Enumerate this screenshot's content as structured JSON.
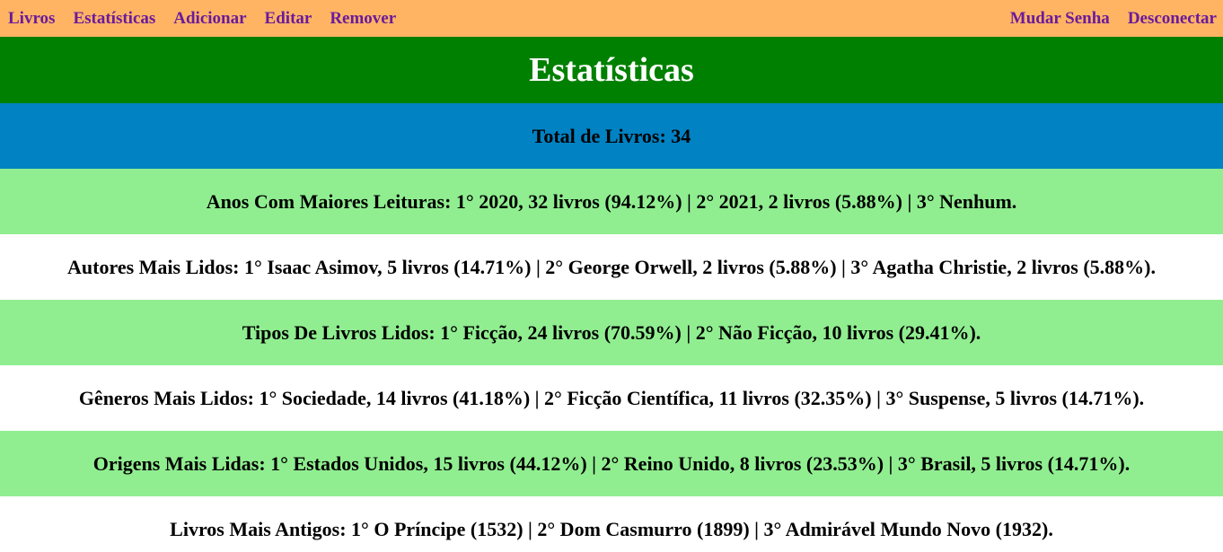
{
  "nav": {
    "left": [
      "Livros",
      "Estatísticas",
      "Adicionar",
      "Editar",
      "Remover"
    ],
    "right": [
      "Mudar Senha",
      "Desconectar"
    ]
  },
  "page": {
    "title": "Estatísticas",
    "total": "Total de Livros: 34"
  },
  "stats": [
    "Anos Com Maiores Leituras: 1° 2020, 32 livros (94.12%) | 2° 2021, 2 livros (5.88%) | 3° Nenhum.",
    "Autores Mais Lidos: 1° Isaac Asimov, 5 livros (14.71%) | 2° George Orwell, 2 livros (5.88%) | 3° Agatha Christie, 2 livros (5.88%).",
    "Tipos De Livros Lidos: 1° Ficção, 24 livros (70.59%) | 2° Não Ficção, 10 livros (29.41%).",
    "Gêneros Mais Lidos: 1° Sociedade, 14 livros (41.18%) | 2° Ficção Científica, 11 livros (32.35%) | 3° Suspense, 5 livros (14.71%).",
    "Origens Mais Lidas: 1° Estados Unidos, 15 livros (44.12%) | 2° Reino Unido, 8 livros (23.53%) | 3° Brasil, 5 livros (14.71%).",
    "Livros Mais Antigos: 1° O Príncipe (1532) | 2° Dom Casmurro (1899) | 3° Admirável Mundo Novo (1932)."
  ],
  "colors": {
    "navbar": "#ffb464",
    "nav_link": "#6a1b9a",
    "title_bar": "#008000",
    "total_bar": "#0082c3",
    "row_green": "#90ee90",
    "row_white": "#ffffff"
  }
}
